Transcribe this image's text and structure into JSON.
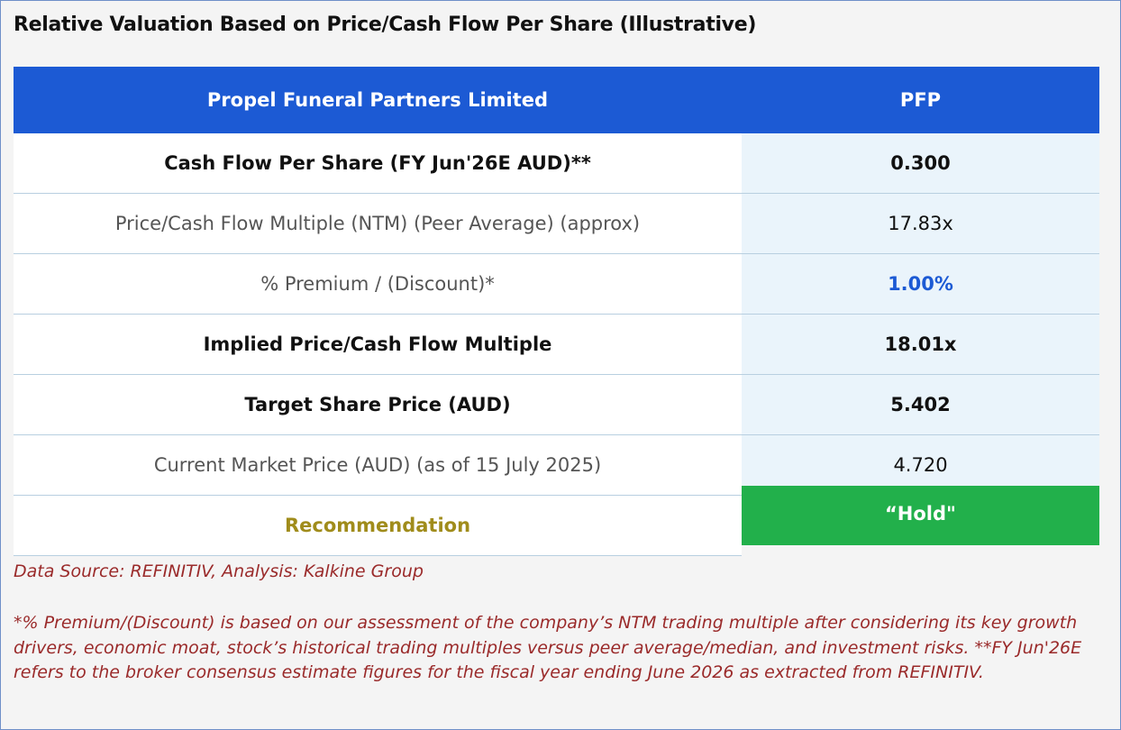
{
  "title": "Relative Valuation Based on Price/Cash Flow Per Share (Illustrative)",
  "table": {
    "header": [
      "Propel Funeral Partners Limited",
      "PFP"
    ],
    "rows": [
      [
        "Cash Flow Per Share (FY Jun'26E AUD)**",
        "0.300"
      ],
      [
        "Price/Cash Flow Multiple (NTM) (Peer Average) (approx)",
        "17.83x"
      ],
      [
        "% Premium / (Discount)*",
        "1.00%"
      ],
      [
        "Implied Price/Cash Flow Multiple",
        "18.01x"
      ],
      [
        "Target Share Price (AUD)",
        "5.402"
      ],
      [
        "Current Market Price (AUD) (as of 15 July 2025)",
        "4.720"
      ],
      [
        "Recommendation",
        "“Hold\""
      ]
    ]
  },
  "notes": {
    "source": "Data Source: REFINITIV, Analysis: Kalkine Group",
    "footnote": "*% Premium/(Discount) is based on our assessment of the company’s NTM trading multiple after considering its key growth drivers, economic moat, stock’s historical trading multiples versus peer average/median, and investment risks. **FY Jun'26E refers to the broker consensus estimate figures for the fiscal year ending June 2026 as extracted from REFINITIV."
  }
}
